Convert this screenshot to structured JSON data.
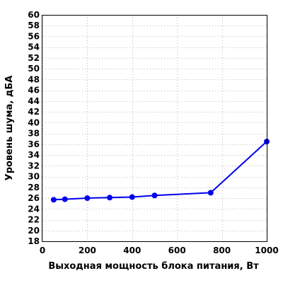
{
  "chart_data": {
    "type": "line",
    "xlabel": "Выходная мощность блока питания, Вт",
    "ylabel": "Уровень шума, дБА",
    "xlim": [
      0,
      1000
    ],
    "ylim": [
      18,
      60
    ],
    "xticks": [
      0,
      200,
      400,
      600,
      800,
      1000
    ],
    "yticks": [
      18,
      20,
      22,
      24,
      26,
      28,
      30,
      32,
      34,
      36,
      38,
      40,
      42,
      44,
      46,
      48,
      50,
      52,
      54,
      56,
      58,
      60
    ],
    "grid": true,
    "legend": false,
    "series": [
      {
        "color": "#0000ee",
        "x": [
          50,
          100,
          200,
          300,
          400,
          500,
          750,
          1000
        ],
        "y": [
          25.7,
          25.8,
          26.0,
          26.1,
          26.2,
          26.5,
          27.0,
          36.5
        ]
      }
    ]
  }
}
